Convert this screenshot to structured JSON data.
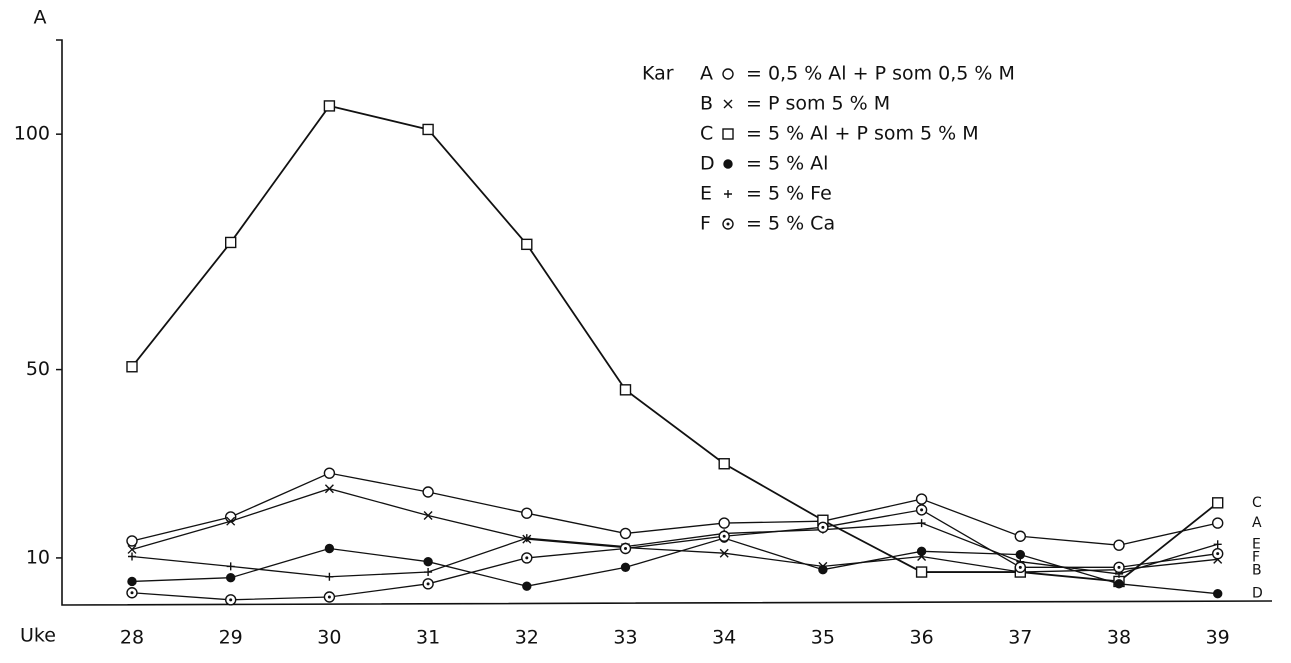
{
  "chart_data": {
    "type": "line",
    "y_label": "A",
    "x_label": "Uke",
    "legend_title": "Kar",
    "categories": [
      "28",
      "29",
      "30",
      "31",
      "32",
      "33",
      "34",
      "35",
      "36",
      "37",
      "38",
      "39"
    ],
    "ylim": [
      0,
      120
    ],
    "yticks": [
      10,
      50,
      100
    ],
    "color": "#111111",
    "series": [
      {
        "name": "A",
        "marker": "circle",
        "label": "= 0,5 % Al + P som 0,5 % M",
        "values": [
          13.6,
          18.7,
          28,
          24,
          19.5,
          15.2,
          17.4,
          17.8,
          22.5,
          14.6,
          12.7,
          17.4
        ]
      },
      {
        "name": "B",
        "marker": "x",
        "label": "= P som 5 % M",
        "values": [
          11.8,
          17.8,
          24.7,
          19,
          14,
          12.2,
          11,
          8.2,
          10.3,
          7,
          7.5,
          9.7
        ]
      },
      {
        "name": "C",
        "marker": "square",
        "label": "= 5 % Al + P som 5 % M",
        "values": [
          50.6,
          77,
          106,
          101,
          76.6,
          45.7,
          30,
          18,
          7,
          7,
          5,
          21.7
        ]
      },
      {
        "name": "D",
        "marker": "dot",
        "label": "= 5 % Al",
        "values": [
          5,
          5.8,
          12,
          9.2,
          4,
          8,
          14.2,
          7.5,
          11.4,
          10.7,
          4.5,
          2.4
        ]
      },
      {
        "name": "E",
        "marker": "plus",
        "label": "= 5 % Fe",
        "values": [
          10.3,
          8.2,
          6,
          7,
          14.2,
          12.4,
          15.2,
          16,
          17.4,
          9.2,
          6.6,
          12.9
        ]
      },
      {
        "name": "F",
        "marker": "circle-dot",
        "label": "= 5 % Ca",
        "values": [
          2.6,
          1.1,
          1.7,
          4.5,
          10,
          12,
          14.6,
          16.5,
          20.2,
          8,
          8,
          10.9
        ]
      }
    ]
  }
}
